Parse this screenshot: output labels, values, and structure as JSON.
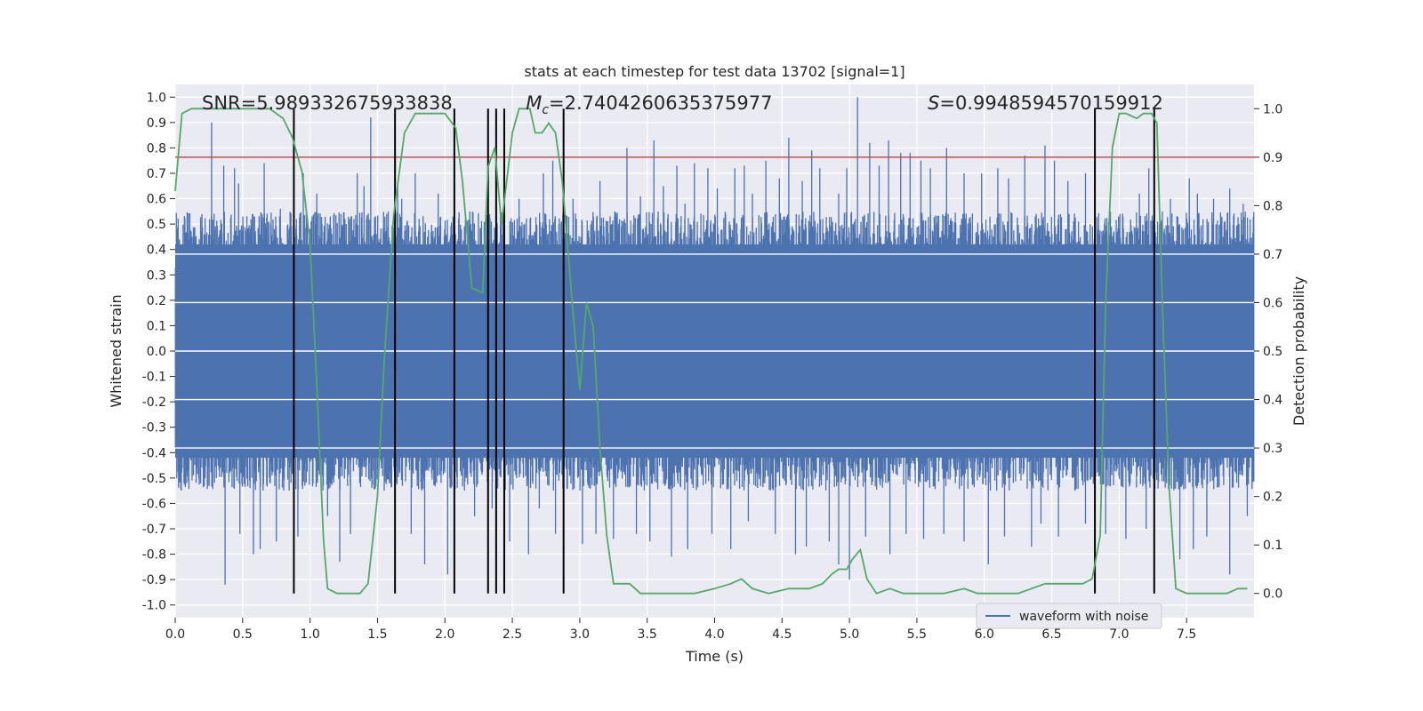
{
  "chart_data": {
    "type": "line",
    "title": "stats at each timestep for test data 13702 [signal=1]",
    "xlabel": "Time (s)",
    "ylabel": "Whitened strain",
    "ylabel_right": "Detection probability",
    "xlim": [
      0.0,
      8.0
    ],
    "ylim": [
      -1.05,
      1.05
    ],
    "ylim_right": [
      -0.05,
      1.05
    ],
    "x_ticks": [
      "0.0",
      "0.5",
      "1.0",
      "1.5",
      "2.0",
      "2.5",
      "3.0",
      "3.5",
      "4.0",
      "4.5",
      "5.0",
      "5.5",
      "6.0",
      "6.5",
      "7.0",
      "7.5"
    ],
    "y_ticks": [
      "1.0",
      "0.9",
      "0.8",
      "0.7",
      "0.6",
      "0.5",
      "0.4",
      "0.3",
      "0.2",
      "0.1",
      "0.0",
      "-0.1",
      "-0.2",
      "-0.3",
      "-0.4",
      "-0.5",
      "-0.6",
      "-0.7",
      "-0.8",
      "-0.9",
      "-1.0"
    ],
    "y_ticks_right": [
      "1.0",
      "0.9",
      "0.8",
      "0.7",
      "0.6",
      "0.5",
      "0.4",
      "0.3",
      "0.2",
      "0.1",
      "0.0"
    ],
    "grid": true,
    "legend_position": "lower-right",
    "colors": {
      "background": "#eaeaf2",
      "grid": "#ffffff",
      "waveform": "#4c72b0",
      "probability": "#55a868",
      "threshold": "#c44e52",
      "markers": "#000000"
    },
    "annotations": {
      "snr": "SNR=5.989332675933838",
      "mc": "=2.7404260635375977",
      "mc_symbol": "M",
      "mc_subscript": "c",
      "s": "=0.9948594570159912",
      "s_symbol": "S"
    },
    "threshold": 0.9,
    "series": [
      {
        "name": "waveform with noise",
        "envelope": {
          "upper_typical": 0.55,
          "lower_typical": -0.55,
          "dense_upper": 0.42,
          "dense_lower": -0.42,
          "spikes": [
            [
              0.27,
              0.9
            ],
            [
              0.36,
              0.73
            ],
            [
              0.44,
              0.72
            ],
            [
              0.47,
              0.66
            ],
            [
              0.66,
              0.74
            ],
            [
              0.78,
              0.56
            ],
            [
              0.95,
              0.7
            ],
            [
              1.05,
              0.62
            ],
            [
              1.15,
              0.53
            ],
            [
              1.35,
              0.7
            ],
            [
              1.4,
              0.65
            ],
            [
              1.45,
              0.92
            ],
            [
              1.58,
              0.55
            ],
            [
              1.65,
              0.67
            ],
            [
              1.68,
              0.6
            ],
            [
              1.78,
              0.7
            ],
            [
              1.95,
              0.62
            ],
            [
              2.06,
              0.53
            ],
            [
              2.32,
              0.8
            ],
            [
              2.55,
              0.6
            ],
            [
              2.73,
              0.7
            ],
            [
              2.8,
              0.75
            ],
            [
              2.95,
              0.6
            ],
            [
              3.15,
              0.67
            ],
            [
              3.26,
              0.55
            ],
            [
              3.35,
              0.8
            ],
            [
              3.45,
              0.61
            ],
            [
              3.55,
              0.83
            ],
            [
              3.62,
              0.65
            ],
            [
              3.72,
              0.73
            ],
            [
              3.78,
              0.58
            ],
            [
              3.85,
              0.74
            ],
            [
              3.95,
              0.72
            ],
            [
              4.02,
              0.64
            ],
            [
              4.15,
              0.72
            ],
            [
              4.22,
              0.73
            ],
            [
              4.28,
              0.62
            ],
            [
              4.38,
              0.75
            ],
            [
              4.48,
              0.68
            ],
            [
              4.55,
              0.84
            ],
            [
              4.65,
              0.67
            ],
            [
              4.72,
              0.79
            ],
            [
              4.78,
              0.72
            ],
            [
              4.92,
              0.62
            ],
            [
              4.98,
              0.72
            ],
            [
              5.06,
              1.0
            ],
            [
              5.15,
              0.82
            ],
            [
              5.22,
              0.73
            ],
            [
              5.29,
              0.83
            ],
            [
              5.38,
              0.78
            ],
            [
              5.45,
              0.78
            ],
            [
              5.53,
              0.75
            ],
            [
              5.6,
              0.72
            ],
            [
              5.72,
              0.8
            ],
            [
              5.85,
              0.7
            ],
            [
              5.98,
              0.7
            ],
            [
              6.1,
              0.72
            ],
            [
              6.18,
              0.68
            ],
            [
              6.3,
              0.77
            ],
            [
              6.45,
              0.81
            ],
            [
              6.52,
              0.75
            ],
            [
              6.62,
              0.67
            ],
            [
              6.75,
              0.7
            ],
            [
              7.15,
              0.62
            ],
            [
              7.22,
              0.72
            ],
            [
              7.26,
              0.95
            ],
            [
              7.32,
              0.55
            ],
            [
              7.38,
              0.6
            ],
            [
              7.52,
              0.68
            ],
            [
              7.58,
              0.62
            ],
            [
              7.7,
              0.6
            ],
            [
              7.82,
              0.64
            ],
            [
              7.92,
              0.58
            ],
            [
              0.37,
              -0.92
            ],
            [
              0.48,
              -0.72
            ],
            [
              0.58,
              -0.8
            ],
            [
              0.63,
              -0.78
            ],
            [
              0.75,
              -0.75
            ],
            [
              0.91,
              -0.73
            ],
            [
              1.13,
              -0.65
            ],
            [
              1.22,
              -0.83
            ],
            [
              1.3,
              -0.72
            ],
            [
              1.55,
              -0.55
            ],
            [
              1.75,
              -0.72
            ],
            [
              1.85,
              -0.84
            ],
            [
              2.02,
              -0.88
            ],
            [
              2.22,
              -0.65
            ],
            [
              2.35,
              -0.62
            ],
            [
              2.48,
              -0.75
            ],
            [
              2.62,
              -0.8
            ],
            [
              2.7,
              -0.62
            ],
            [
              2.82,
              -0.72
            ],
            [
              3.02,
              -0.76
            ],
            [
              3.12,
              -0.72
            ],
            [
              3.25,
              -0.74
            ],
            [
              3.42,
              -0.72
            ],
            [
              3.52,
              -0.75
            ],
            [
              3.68,
              -0.81
            ],
            [
              3.8,
              -0.78
            ],
            [
              3.98,
              -0.72
            ],
            [
              4.12,
              -0.78
            ],
            [
              4.25,
              -0.67
            ],
            [
              4.45,
              -0.72
            ],
            [
              4.6,
              -0.8
            ],
            [
              4.68,
              -0.77
            ],
            [
              4.85,
              -0.75
            ],
            [
              4.92,
              -0.84
            ],
            [
              5.0,
              -0.9
            ],
            [
              5.12,
              -0.73
            ],
            [
              5.3,
              -0.8
            ],
            [
              5.42,
              -0.72
            ],
            [
              5.55,
              -0.74
            ],
            [
              5.7,
              -0.72
            ],
            [
              5.85,
              -0.75
            ],
            [
              6.03,
              -0.84
            ],
            [
              6.15,
              -0.73
            ],
            [
              6.35,
              -0.77
            ],
            [
              6.42,
              -0.68
            ],
            [
              6.55,
              -0.73
            ],
            [
              6.75,
              -0.68
            ],
            [
              6.9,
              -0.72
            ],
            [
              7.05,
              -0.74
            ],
            [
              7.2,
              -0.7
            ],
            [
              7.45,
              -0.82
            ],
            [
              7.55,
              -0.78
            ],
            [
              7.65,
              -0.73
            ],
            [
              7.82,
              -0.88
            ],
            [
              7.95,
              -0.65
            ]
          ]
        }
      },
      {
        "name": "",
        "axis": "right",
        "points": [
          [
            0.0,
            0.83
          ],
          [
            0.05,
            0.99
          ],
          [
            0.12,
            1.0
          ],
          [
            0.3,
            1.0
          ],
          [
            0.5,
            1.0
          ],
          [
            0.7,
            1.0
          ],
          [
            0.8,
            0.98
          ],
          [
            0.87,
            0.94
          ],
          [
            0.94,
            0.87
          ],
          [
            1.0,
            0.72
          ],
          [
            1.05,
            0.43
          ],
          [
            1.1,
            0.11
          ],
          [
            1.13,
            0.01
          ],
          [
            1.2,
            0.0
          ],
          [
            1.3,
            0.0
          ],
          [
            1.37,
            0.0
          ],
          [
            1.43,
            0.02
          ],
          [
            1.5,
            0.2
          ],
          [
            1.55,
            0.48
          ],
          [
            1.62,
            0.78
          ],
          [
            1.7,
            0.95
          ],
          [
            1.78,
            0.99
          ],
          [
            1.85,
            0.99
          ],
          [
            1.95,
            0.99
          ],
          [
            2.0,
            0.99
          ],
          [
            2.08,
            0.96
          ],
          [
            2.13,
            0.85
          ],
          [
            2.2,
            0.63
          ],
          [
            2.28,
            0.62
          ],
          [
            2.32,
            0.88
          ],
          [
            2.37,
            0.92
          ],
          [
            2.42,
            0.76
          ],
          [
            2.5,
            0.95
          ],
          [
            2.55,
            1.0
          ],
          [
            2.63,
            1.0
          ],
          [
            2.67,
            0.95
          ],
          [
            2.72,
            0.95
          ],
          [
            2.77,
            0.97
          ],
          [
            2.82,
            0.95
          ],
          [
            2.87,
            0.85
          ],
          [
            2.95,
            0.58
          ],
          [
            3.0,
            0.42
          ],
          [
            3.05,
            0.6
          ],
          [
            3.1,
            0.55
          ],
          [
            3.15,
            0.3
          ],
          [
            3.2,
            0.12
          ],
          [
            3.25,
            0.02
          ],
          [
            3.3,
            0.02
          ],
          [
            3.37,
            0.02
          ],
          [
            3.45,
            0.0
          ],
          [
            3.55,
            0.0
          ],
          [
            3.7,
            0.0
          ],
          [
            3.85,
            0.0
          ],
          [
            4.0,
            0.01
          ],
          [
            4.12,
            0.02
          ],
          [
            4.2,
            0.03
          ],
          [
            4.28,
            0.01
          ],
          [
            4.4,
            0.0
          ],
          [
            4.55,
            0.01
          ],
          [
            4.7,
            0.01
          ],
          [
            4.8,
            0.02
          ],
          [
            4.87,
            0.04
          ],
          [
            4.92,
            0.05
          ],
          [
            4.98,
            0.05
          ],
          [
            5.02,
            0.07
          ],
          [
            5.08,
            0.09
          ],
          [
            5.13,
            0.03
          ],
          [
            5.2,
            0.0
          ],
          [
            5.3,
            0.01
          ],
          [
            5.4,
            0.0
          ],
          [
            5.55,
            0.0
          ],
          [
            5.7,
            0.0
          ],
          [
            5.85,
            0.01
          ],
          [
            5.95,
            0.0
          ],
          [
            6.1,
            0.0
          ],
          [
            6.25,
            0.0
          ],
          [
            6.35,
            0.01
          ],
          [
            6.45,
            0.02
          ],
          [
            6.55,
            0.02
          ],
          [
            6.65,
            0.02
          ],
          [
            6.73,
            0.02
          ],
          [
            6.8,
            0.03
          ],
          [
            6.86,
            0.12
          ],
          [
            6.9,
            0.6
          ],
          [
            6.95,
            0.92
          ],
          [
            7.0,
            0.99
          ],
          [
            7.05,
            0.99
          ],
          [
            7.13,
            0.98
          ],
          [
            7.18,
            0.99
          ],
          [
            7.24,
            0.99
          ],
          [
            7.28,
            0.97
          ],
          [
            7.32,
            0.6
          ],
          [
            7.37,
            0.22
          ],
          [
            7.42,
            0.01
          ],
          [
            7.5,
            0.0
          ],
          [
            7.65,
            0.0
          ],
          [
            7.8,
            0.0
          ],
          [
            7.88,
            0.01
          ],
          [
            7.95,
            0.01
          ]
        ]
      }
    ],
    "vertical_markers": [
      0.88,
      1.63,
      2.07,
      2.32,
      2.38,
      2.44,
      2.88,
      6.82,
      7.26
    ]
  }
}
